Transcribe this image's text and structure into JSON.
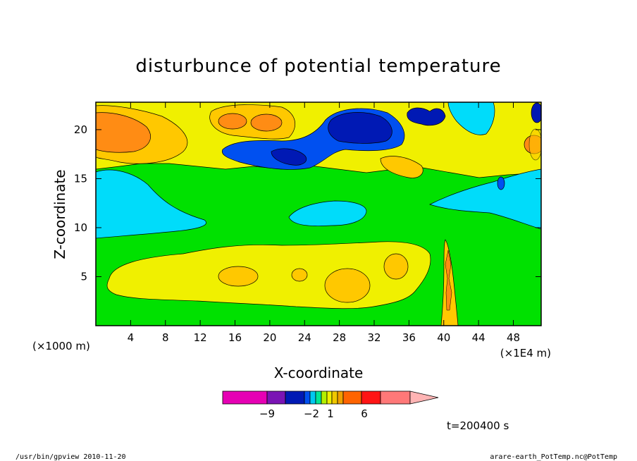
{
  "chart_data": {
    "type": "heatmap",
    "title": "disturbunce of potential temperature",
    "xlabel": "X-coordinate",
    "ylabel": "Z-coordinate",
    "x_unit_left": "(×1000 m)",
    "x_unit_right": "(×1E4 m)",
    "xlim": [
      0,
      51.2
    ],
    "ylim": [
      0,
      22.8
    ],
    "x_ticks": [
      4,
      8,
      12,
      16,
      20,
      24,
      28,
      32,
      36,
      40,
      44,
      48
    ],
    "y_ticks": [
      5,
      10,
      15,
      20
    ],
    "time_label": "t=200400 s",
    "colorbar": {
      "labels": [
        {
          "text": "−9",
          "value": -9
        },
        {
          "text": "−2",
          "value": -2
        },
        {
          "text": "1",
          "value": 1
        },
        {
          "text": "6",
          "value": 6
        }
      ],
      "colors": [
        "#e600b4",
        "#7a14b4",
        "#0019b4",
        "#0050f0",
        "#00c8f0",
        "#00e696",
        "#b4f000",
        "#f0f000",
        "#f0c800",
        "#f0a000",
        "#ff6400",
        "#ff1414",
        "#ff7878",
        "#ffb4b4"
      ]
    },
    "field_colors": {
      "background": "#00e100",
      "lightblue": "#00dcfa",
      "blue": "#0050f0",
      "darkblue": "#0019b4",
      "yellow": "#f0f000",
      "gold": "#ffc800",
      "orange": "#ff8c14",
      "lightorange": "#ffaa3c"
    }
  },
  "footer": {
    "left": "/usr/bin/gpview  2010-11-20",
    "right": "arare-earth_PotTemp.nc@PotTemp"
  }
}
